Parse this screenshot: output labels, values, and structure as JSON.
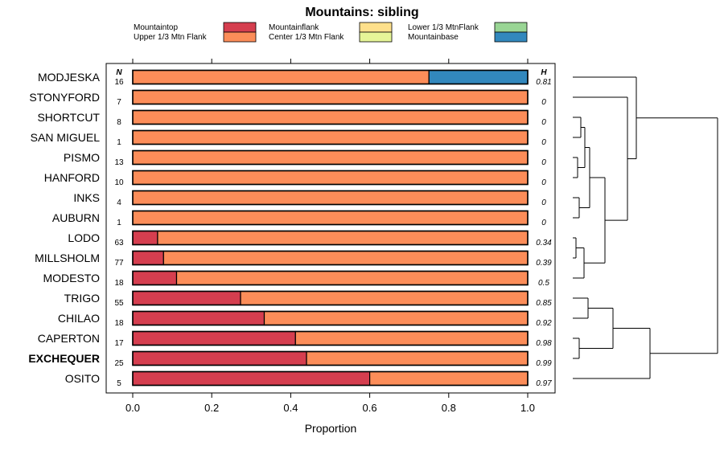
{
  "chart_data": {
    "type": "bar",
    "orientation": "horizontal",
    "stacked": true,
    "title": "Mountains: sibling",
    "xlabel": "Proportion",
    "xlim": [
      0,
      1
    ],
    "xticks": [
      0,
      0.2,
      0.4,
      0.6,
      0.8,
      1
    ],
    "xtick_labels": [
      "0.0",
      "0.2",
      "0.4",
      "0.6",
      "0.8",
      "1.0"
    ],
    "n_header": "N",
    "h_header": "H",
    "legend": [
      {
        "name": "Mountaintop",
        "color": "#d53e4f"
      },
      {
        "name": "Upper 1/3 Mtn Flank",
        "color": "#fc8d59"
      },
      {
        "name": "Mountainflank",
        "color": "#fee08b"
      },
      {
        "name": "Center 1/3 Mtn Flank",
        "color": "#e6f598"
      },
      {
        "name": "Lower 1/3 MtnFlank",
        "color": "#99d594"
      },
      {
        "name": "Mountainbase",
        "color": "#3288bd"
      }
    ],
    "legend_placement": "top",
    "rows": [
      {
        "label": "MODJESKA",
        "n": "16",
        "h": "0.81",
        "bold": false,
        "values": [
          0,
          0.75,
          0,
          0,
          0,
          0.25
        ]
      },
      {
        "label": "STONYFORD",
        "n": "7",
        "h": "0",
        "bold": false,
        "values": [
          0,
          1,
          0,
          0,
          0,
          0
        ]
      },
      {
        "label": "SHORTCUT",
        "n": "8",
        "h": "0",
        "bold": false,
        "values": [
          0,
          1,
          0,
          0,
          0,
          0
        ]
      },
      {
        "label": "SAN MIGUEL",
        "n": "1",
        "h": "0",
        "bold": false,
        "values": [
          0,
          1,
          0,
          0,
          0,
          0
        ]
      },
      {
        "label": "PISMO",
        "n": "13",
        "h": "0",
        "bold": false,
        "values": [
          0,
          1,
          0,
          0,
          0,
          0
        ]
      },
      {
        "label": "HANFORD",
        "n": "10",
        "h": "0",
        "bold": false,
        "values": [
          0,
          1,
          0,
          0,
          0,
          0
        ]
      },
      {
        "label": "INKS",
        "n": "4",
        "h": "0",
        "bold": false,
        "values": [
          0,
          1,
          0,
          0,
          0,
          0
        ]
      },
      {
        "label": "AUBURN",
        "n": "1",
        "h": "0",
        "bold": false,
        "values": [
          0,
          1,
          0,
          0,
          0,
          0
        ]
      },
      {
        "label": "LODO",
        "n": "63",
        "h": "0.34",
        "bold": false,
        "values": [
          0.063,
          0.937,
          0,
          0,
          0,
          0
        ]
      },
      {
        "label": "MILLSHOLM",
        "n": "77",
        "h": "0.39",
        "bold": false,
        "values": [
          0.078,
          0.922,
          0,
          0,
          0,
          0
        ]
      },
      {
        "label": "MODESTO",
        "n": "18",
        "h": "0.5",
        "bold": false,
        "values": [
          0.111,
          0.889,
          0,
          0,
          0,
          0
        ]
      },
      {
        "label": "TRIGO",
        "n": "55",
        "h": "0.85",
        "bold": false,
        "values": [
          0.273,
          0.727,
          0,
          0,
          0,
          0
        ]
      },
      {
        "label": "CHILAO",
        "n": "18",
        "h": "0.92",
        "bold": false,
        "values": [
          0.333,
          0.667,
          0,
          0,
          0,
          0
        ]
      },
      {
        "label": "CAPERTON",
        "n": "17",
        "h": "0.98",
        "bold": false,
        "values": [
          0.412,
          0.588,
          0,
          0,
          0,
          0
        ]
      },
      {
        "label": "EXCHEQUER",
        "n": "25",
        "h": "0.99",
        "bold": true,
        "values": [
          0.44,
          0.56,
          0,
          0,
          0,
          0
        ]
      },
      {
        "label": "OSITO",
        "n": "5",
        "h": "0.97",
        "bold": false,
        "values": [
          0.6,
          0.4,
          0,
          0,
          0,
          0
        ]
      }
    ]
  }
}
